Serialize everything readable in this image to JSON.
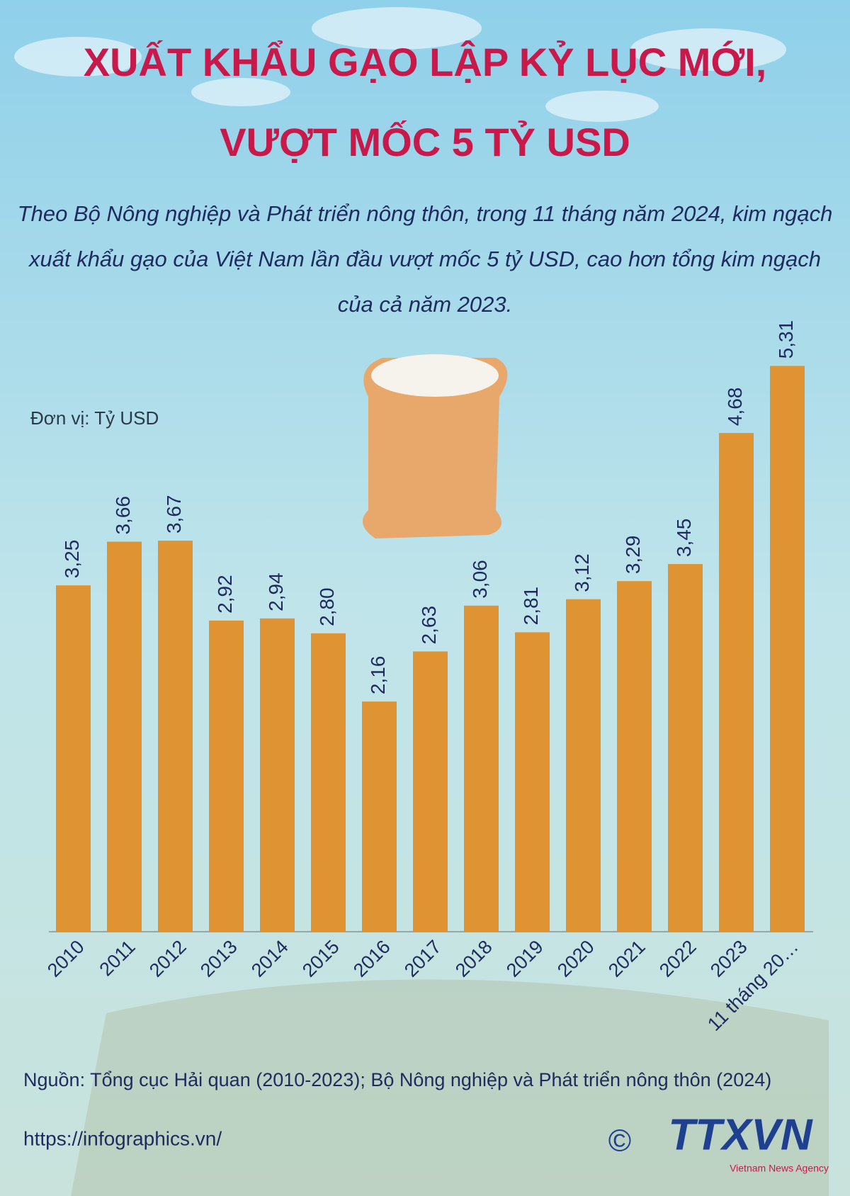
{
  "chart_data": {
    "type": "bar",
    "title": [
      "XUẤT KHẨU GẠO LẬP KỶ LỤC MỚI,",
      "VƯỢT MỐC 5 TỶ USD"
    ],
    "subtitle": "Theo Bộ Nông nghiệp và Phát triển nông thôn, trong 11 tháng năm 2024, kim ngạch xuất khẩu gạo của Việt Nam lần đầu vượt mốc 5 tỷ USD, cao hơn tổng kim ngạch của cả năm 2023.",
    "unit_label": "Đơn vị: Tỷ USD",
    "categories": [
      "2010",
      "2011",
      "2012",
      "2013",
      "2014",
      "2015",
      "2016",
      "2017",
      "2018",
      "2019",
      "2020",
      "2021",
      "2022",
      "2023",
      "11 tháng 20…"
    ],
    "values": [
      3.25,
      3.66,
      3.67,
      2.92,
      2.94,
      2.8,
      2.16,
      2.63,
      3.06,
      2.81,
      3.12,
      3.29,
      3.45,
      4.68,
      5.31
    ],
    "value_labels": [
      "3,25",
      "3,66",
      "3,67",
      "2,92",
      "2,94",
      "2,80",
      "2,16",
      "2,63",
      "3,06",
      "2,81",
      "3,12",
      "3,29",
      "3,45",
      "4,68",
      "5,31"
    ],
    "color": "#df9332",
    "source": "Nguồn: Tổng cục Hải quan (2010-2023); Bộ Nông nghiệp và Phát triển nông thôn (2024)",
    "url": "https://infographics.vn/",
    "logo": {
      "copyright": "©",
      "name": "TTXVN",
      "tagline": "Vietnam News Agency"
    }
  }
}
